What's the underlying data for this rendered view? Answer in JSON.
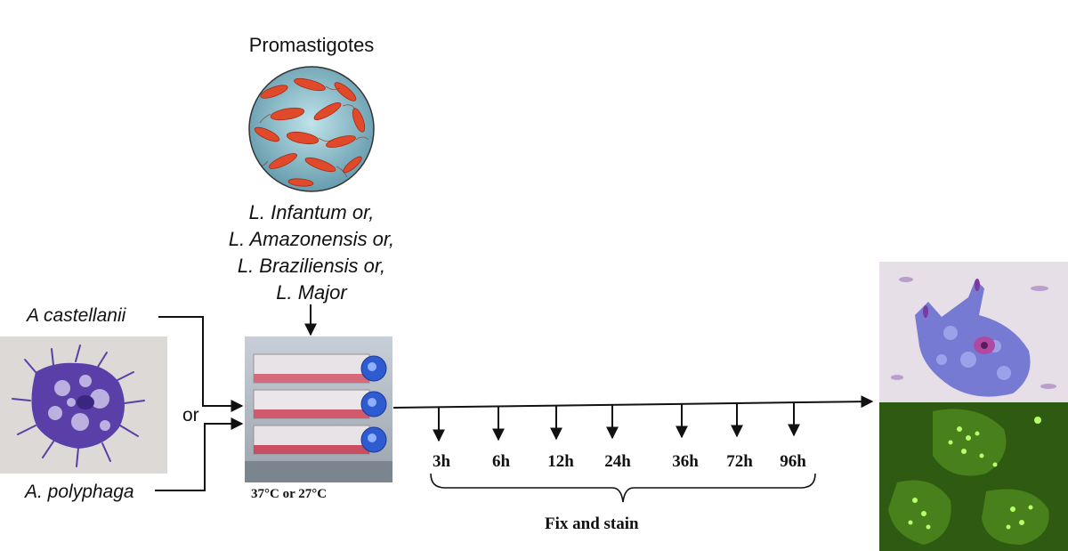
{
  "promastigotes_label": "Promastigotes",
  "species": [
    "L. Infantum or,",
    "L. Amazonensis or,",
    "L. Braziliensis or,",
    "L. Major"
  ],
  "amoeba_1": "A castellanii",
  "amoeba_2": "A. polyphaga",
  "or_label": "or",
  "temperature": "37°C or 27°C",
  "timepoints": [
    "3h",
    "6h",
    "12h",
    "24h",
    "36h",
    "72h",
    "96h"
  ],
  "fix_label": "Fix and stain",
  "colors": {
    "promastigote": "#e04a2a",
    "amoeba_stain": "#5a3fa8",
    "fluorescence": "#6fe04a",
    "flask_cap": "#2f5bd0"
  }
}
